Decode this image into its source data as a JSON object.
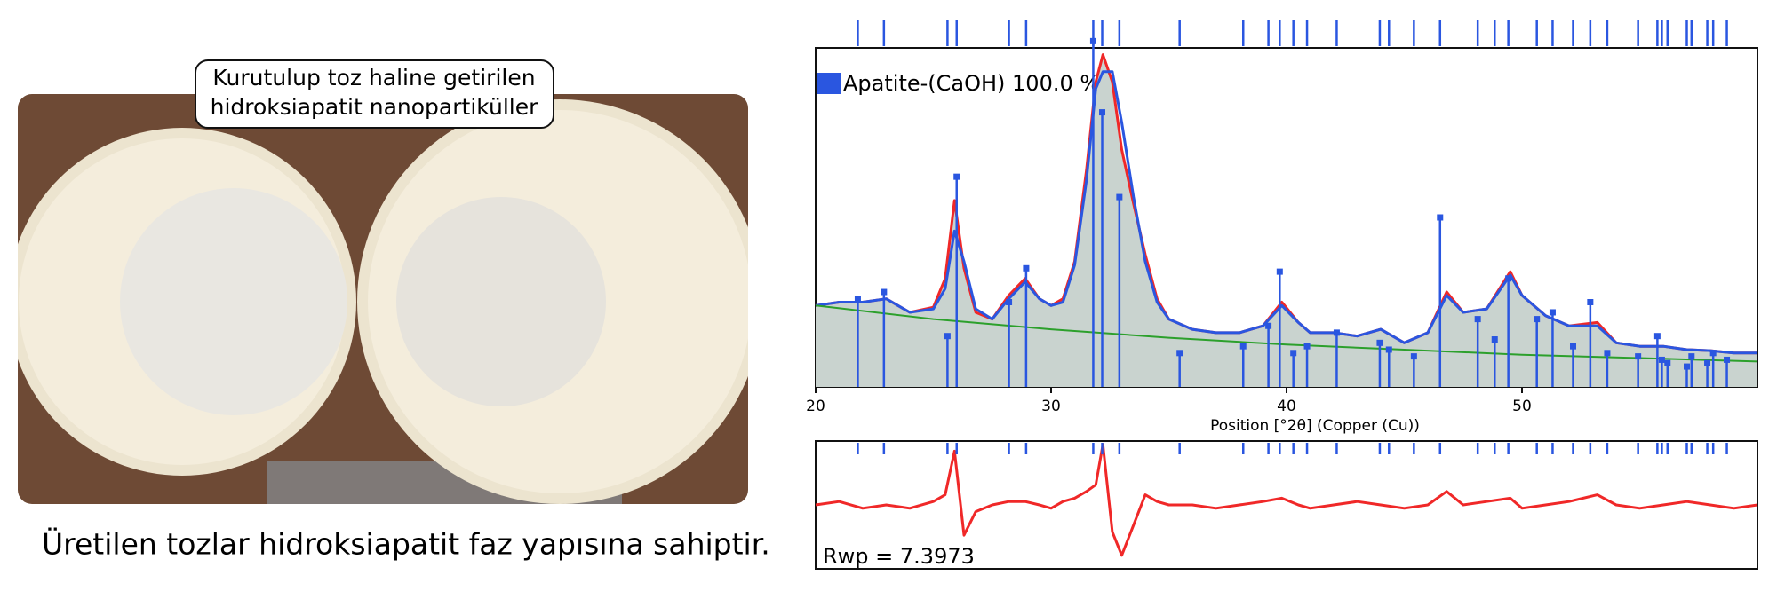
{
  "photo": {
    "callout": [
      "Kurutulup toz haline getirilen",
      "hidroksiapatit nanopartiküller"
    ],
    "caption": "Üretilen tozlar hidroksiapatit faz yapısına sahiptir."
  },
  "chart_data": [
    {
      "type": "line",
      "x_label": "Position [°2θ] (Copper (Cu))",
      "xlim": [
        20,
        60
      ],
      "xticks": [
        20,
        30,
        40,
        50
      ],
      "ylim": [
        0,
        100
      ],
      "x": [
        20,
        21,
        22,
        23,
        24,
        25,
        25.5,
        25.9,
        26.3,
        26.8,
        27.5,
        28.2,
        28.9,
        29.5,
        30,
        30.5,
        31,
        31.5,
        31.9,
        32.2,
        32.6,
        33,
        33.5,
        34,
        34.5,
        35,
        36,
        37,
        38,
        39,
        39.8,
        40.5,
        41,
        42,
        43,
        44,
        45,
        46,
        46.8,
        47.5,
        48.5,
        49.5,
        50,
        51,
        52,
        53.2,
        54,
        55,
        56,
        57,
        58,
        59,
        60
      ],
      "series": [
        {
          "color": "#f02828",
          "values": [
            24,
            25,
            25,
            26,
            22,
            23.5,
            32,
            55,
            35,
            22,
            20,
            27,
            32,
            26,
            24,
            26,
            37,
            64,
            90,
            98,
            90,
            70,
            54,
            39,
            26,
            20,
            17,
            16,
            16,
            18,
            25,
            19,
            16,
            16,
            15,
            17,
            13,
            16,
            28,
            22,
            23,
            34,
            27,
            21,
            18,
            19,
            13,
            12,
            12,
            11,
            10.7,
            10,
            10
          ]
        },
        {
          "color": "#2a56e0",
          "values": [
            24,
            25,
            25,
            26,
            22,
            23,
            29,
            46,
            37,
            23,
            20,
            26,
            31,
            26,
            24,
            25,
            36,
            61,
            88,
            93,
            93,
            78,
            56,
            37,
            25,
            20,
            17,
            16,
            16,
            18,
            24,
            19,
            16,
            16,
            15,
            17,
            13,
            16,
            27,
            22,
            23,
            33,
            27,
            21,
            18,
            18,
            13,
            12,
            12,
            11,
            10.7,
            10,
            10
          ]
        },
        {
          "color": "#2ca02c",
          "x": [
            20,
            25,
            30,
            35,
            40,
            45,
            50,
            55,
            60
          ],
          "values": [
            24,
            20,
            17,
            14.5,
            12.5,
            11,
            9.5,
            8.5,
            7.5
          ]
        }
      ],
      "reference_peaks": {
        "name": "Apatite-(CaOH) 100.0 %",
        "color": "#2a56e0",
        "positions": [
          21.79,
          22.9,
          25.6,
          25.99,
          28.21,
          28.94,
          31.79,
          32.17,
          32.9,
          35.46,
          38.16,
          39.23,
          39.71,
          40.29,
          40.87,
          42.13,
          43.96,
          44.35,
          45.41,
          46.52,
          48.12,
          48.84,
          49.42,
          50.63,
          51.3,
          52.17,
          52.9,
          53.62,
          54.93,
          55.75,
          55.94,
          56.18,
          57.0,
          57.2,
          57.87,
          58.12,
          58.7
        ],
        "heights": [
          26,
          28,
          15,
          62,
          25,
          35,
          102,
          81,
          56,
          10,
          12,
          18,
          34,
          10,
          12,
          16,
          13,
          11,
          9,
          50,
          20,
          14,
          32,
          20,
          22,
          12,
          25,
          10,
          9,
          15,
          8,
          7,
          6,
          9,
          7,
          10,
          8
        ]
      }
    },
    {
      "type": "line",
      "annotation": "Rwp = 7.3973",
      "xlim": [
        20,
        60
      ],
      "ylim": [
        -19,
        19
      ],
      "x": [
        20,
        21,
        22,
        23,
        24,
        25,
        25.5,
        25.9,
        26.3,
        26.8,
        27.5,
        28.2,
        28.9,
        29.5,
        30,
        30.5,
        31,
        31.5,
        31.9,
        32.2,
        32.6,
        33,
        33.5,
        34,
        34.5,
        35,
        36,
        37,
        38,
        39,
        39.8,
        40.5,
        41,
        42,
        43,
        44,
        45,
        46,
        46.8,
        47.5,
        48.5,
        49.5,
        50,
        51,
        52,
        53.2,
        54,
        55,
        56,
        57,
        58,
        59,
        60
      ],
      "series": [
        {
          "color": "#f02828",
          "values": [
            0,
            1,
            -1,
            0,
            -1,
            1,
            3,
            16,
            -9,
            -2,
            0,
            1,
            1,
            0,
            -1,
            1,
            2,
            4,
            6,
            18,
            -8,
            -15,
            -6,
            3,
            1,
            0,
            0,
            -1,
            0,
            1,
            2,
            0,
            -1,
            0,
            1,
            0,
            -1,
            0,
            4,
            0,
            1,
            2,
            -1,
            0,
            1,
            3,
            0,
            -1,
            0,
            1,
            0,
            -1,
            0
          ]
        }
      ]
    }
  ]
}
